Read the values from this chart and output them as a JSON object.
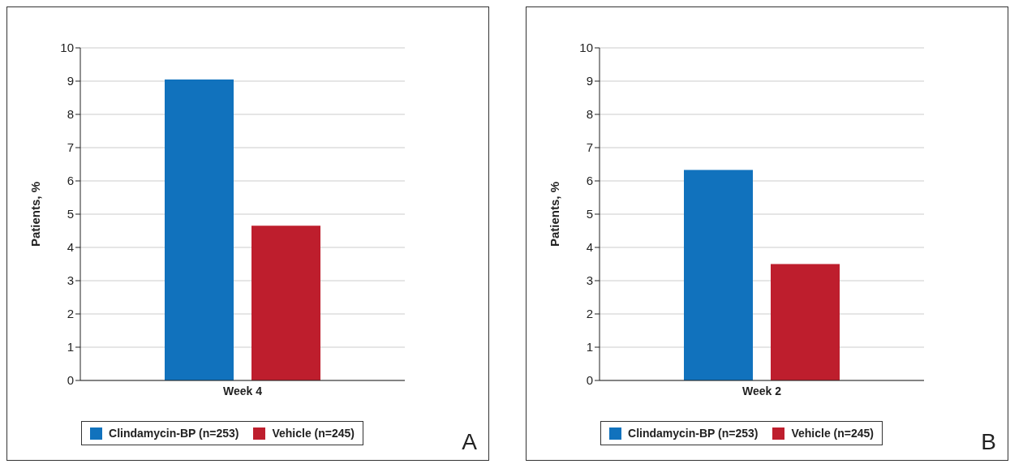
{
  "chart_data": [
    {
      "type": "bar",
      "ylabel": "Patients, %",
      "categories": [
        "Week 4"
      ],
      "series": [
        {
          "name": "Clindamycin-BP (n=253)",
          "color": "#1172bd",
          "values": [
            9.05
          ]
        },
        {
          "name": "Vehicle (n=245)",
          "color": "#be1e2d",
          "values": [
            4.65
          ]
        }
      ],
      "ylim": [
        0,
        10
      ],
      "yticks": [
        0,
        1,
        2,
        3,
        4,
        5,
        6,
        7,
        8,
        9,
        10
      ],
      "grid": "y",
      "legend": "bottom",
      "annotations": [
        "A"
      ]
    },
    {
      "type": "bar",
      "ylabel": "Patients, %",
      "categories": [
        "Week 2"
      ],
      "series": [
        {
          "name": "Clindamycin-BP (n=253)",
          "color": "#1172bd",
          "values": [
            6.33
          ]
        },
        {
          "name": "Vehicle (n=245)",
          "color": "#be1e2d",
          "values": [
            3.5
          ]
        }
      ],
      "ylim": [
        0,
        10
      ],
      "yticks": [
        0,
        1,
        2,
        3,
        4,
        5,
        6,
        7,
        8,
        9,
        10
      ],
      "grid": "y",
      "legend": "bottom",
      "annotations": [
        "B"
      ]
    }
  ]
}
